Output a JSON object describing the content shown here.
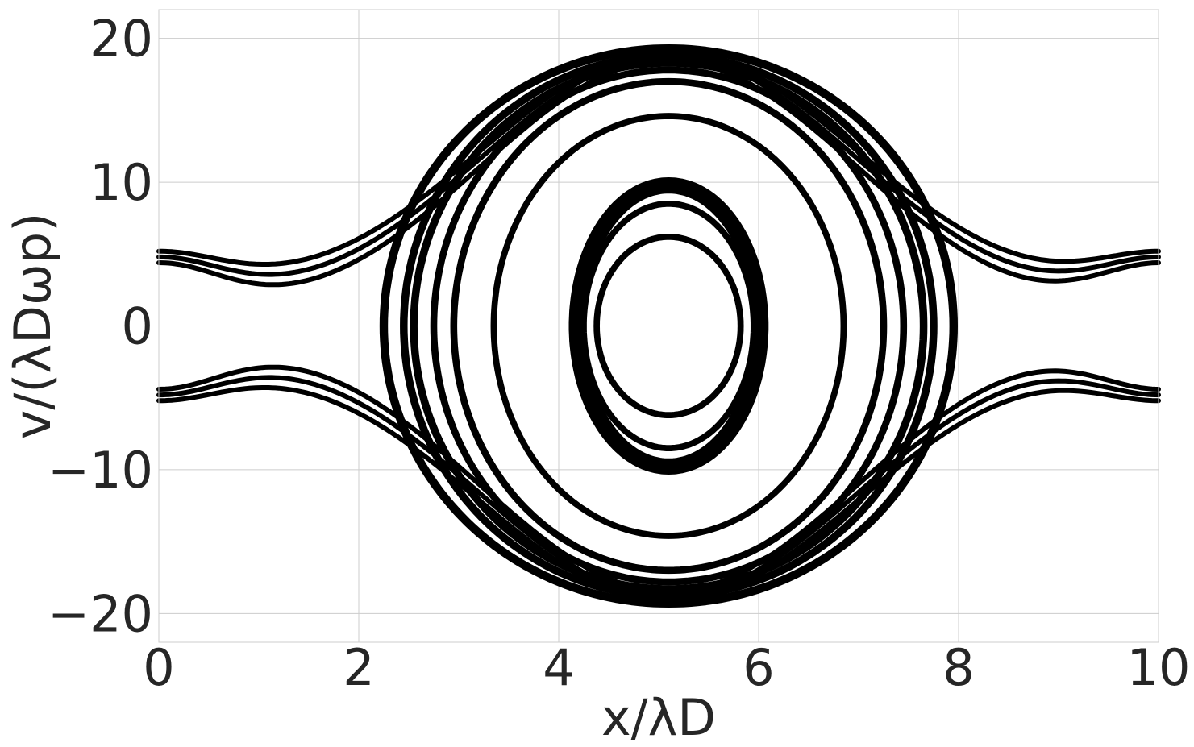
{
  "chart_data": {
    "type": "scatter",
    "title": "",
    "xlabel": "x/λD",
    "ylabel": "v/(λDωp)",
    "xlim": [
      0,
      10
    ],
    "ylim": [
      -22,
      22
    ],
    "grid": true,
    "xticks": [
      0,
      2,
      4,
      6,
      8,
      10
    ],
    "yticks": [
      -20,
      -10,
      0,
      10,
      20
    ],
    "xtick_labels": [
      "0",
      "2",
      "4",
      "6",
      "8",
      "10"
    ],
    "ytick_labels": [
      "−20",
      "−10",
      "0",
      "10",
      "20"
    ],
    "color": "#000000",
    "center_x": 5.1,
    "trapped_orbits": [
      {
        "x_half_width": 0.95,
        "v_amp": 10.0,
        "band": 0.4
      },
      {
        "x_half_width": 0.88,
        "v_amp": 9.5,
        "band": 0.3
      },
      {
        "x_half_width": 0.85,
        "v_amp": 8.5,
        "band": 0.15
      },
      {
        "x_half_width": 0.72,
        "v_amp": 6.2,
        "band": 0.15
      },
      {
        "x_half_width": 1.75,
        "v_amp": 14.6,
        "band": 0.15
      },
      {
        "x_half_width": 2.15,
        "v_amp": 17.0,
        "band": 0.2
      },
      {
        "x_half_width": 2.35,
        "v_amp": 17.8,
        "band": 0.2
      },
      {
        "x_half_width": 2.55,
        "v_amp": 18.3,
        "band": 0.25
      },
      {
        "x_half_width": 2.65,
        "v_amp": 18.8,
        "band": 0.25
      },
      {
        "x_half_width": 2.85,
        "v_amp": 19.3,
        "band": 0.3
      }
    ],
    "passing_orbits": [
      {
        "v_edge": 5.2,
        "v_min": 3.6,
        "v_max": 19.2
      },
      {
        "v_edge": 4.8,
        "v_min": 2.8,
        "v_max": 18.9
      },
      {
        "v_edge": 4.4,
        "v_min": 2.0,
        "v_max": 18.5
      }
    ]
  }
}
